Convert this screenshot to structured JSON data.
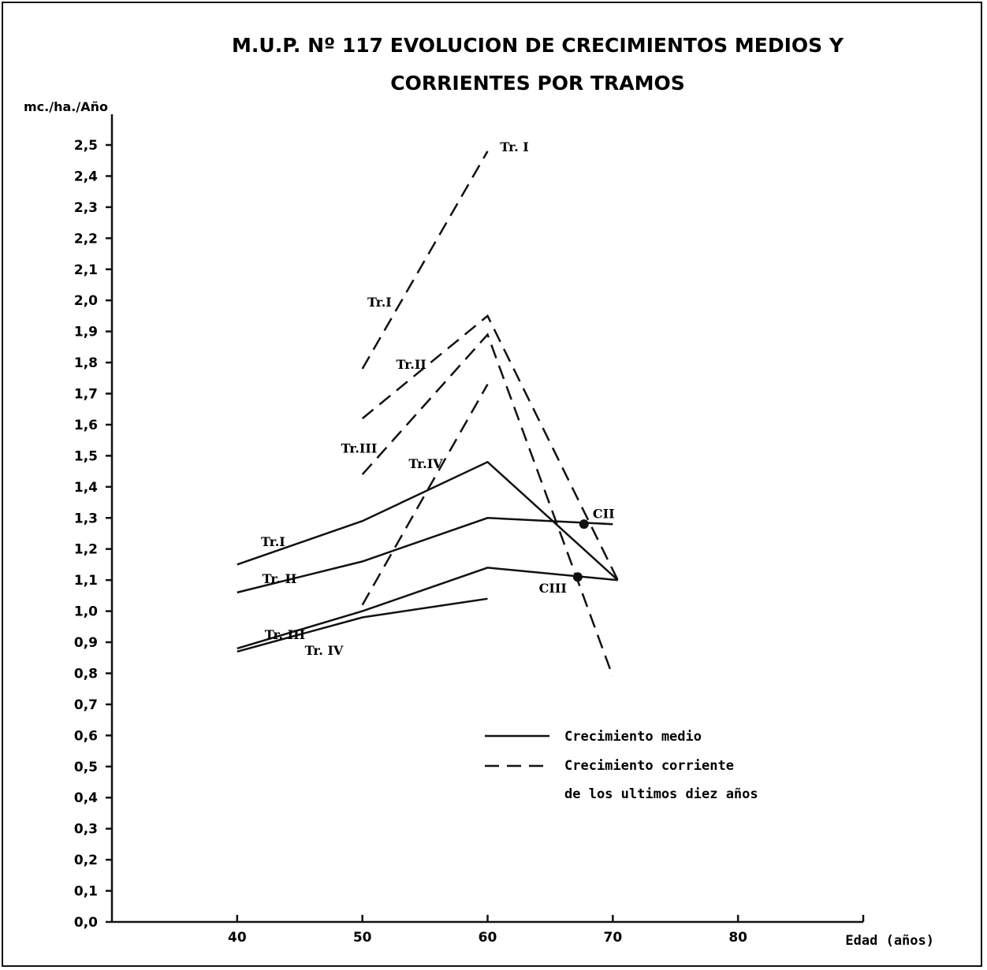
{
  "chart_data": {
    "type": "line",
    "title_line1": "M.U.P. Nº 117 EVOLUCION DE CRECIMIENTOS MEDIOS Y",
    "title_line2": "CORRIENTES POR TRAMOS",
    "ylabel": "mc./ha./Año",
    "xlabel": "Edad (años)",
    "xlim": [
      30,
      90
    ],
    "ylim": [
      0,
      2.5
    ],
    "x_ticks": [
      40,
      50,
      60,
      70,
      80,
      90
    ],
    "x_tick_labels": [
      "40",
      "50",
      "60",
      "70",
      "80",
      ""
    ],
    "y_ticks": [
      0,
      0.1,
      0.2,
      0.3,
      0.4,
      0.5,
      0.6,
      0.7,
      0.8,
      0.9,
      1.0,
      1.1,
      1.2,
      1.3,
      1.4,
      1.5,
      1.6,
      1.7,
      1.8,
      1.9,
      2.0,
      2.1,
      2.2,
      2.3,
      2.4,
      2.5
    ],
    "y_tick_labels": [
      "0,0",
      "0,1",
      "0,2",
      "0,3",
      "0,4",
      "0,5",
      "0,6",
      "0,7",
      "0,8",
      "0,9",
      "1,0",
      "1,1",
      "1,2",
      "1,3",
      "1,4",
      "1,5",
      "1,6",
      "1,7",
      "1,8",
      "1,9",
      "2,0",
      "2,1",
      "2,2",
      "2,3",
      "2,4",
      "2,5"
    ],
    "grid": false,
    "legend_position": "bottom-right",
    "legend": [
      {
        "style": "solid",
        "label": "Crecimiento medio"
      },
      {
        "style": "dashed",
        "label": "Crecimiento corriente",
        "label2": "de los ultimos diez años"
      }
    ],
    "series": [
      {
        "name": "Tr.I",
        "style": "solid",
        "points": [
          [
            40,
            1.15
          ],
          [
            50,
            1.29
          ],
          [
            60,
            1.48
          ],
          [
            70.4,
            1.1
          ]
        ],
        "label_at": [
          41.9,
          1.21
        ]
      },
      {
        "name": "Tr. II",
        "style": "solid",
        "points": [
          [
            40,
            1.06
          ],
          [
            50,
            1.16
          ],
          [
            60,
            1.3
          ],
          [
            70,
            1.28
          ]
        ],
        "label_at": [
          42.0,
          1.09
        ]
      },
      {
        "name": "Tr. III",
        "style": "solid",
        "points": [
          [
            40,
            0.88
          ],
          [
            50,
            1.0
          ],
          [
            60,
            1.14
          ],
          [
            70.4,
            1.1
          ]
        ],
        "label_at": [
          42.2,
          0.91
        ]
      },
      {
        "name": "Tr. IV",
        "style": "solid",
        "points": [
          [
            40,
            0.87
          ],
          [
            50,
            0.98
          ],
          [
            60,
            1.04
          ]
        ],
        "label_at": [
          45.4,
          0.86
        ]
      },
      {
        "name": "Tr. I",
        "style": "dashed",
        "points": [
          [
            50,
            1.78
          ],
          [
            60,
            2.48
          ]
        ],
        "label_at": [
          61.0,
          2.48
        ]
      },
      {
        "name": "Tr.I",
        "style": "dashed",
        "points": [],
        "label_at": [
          50.4,
          1.98
        ]
      },
      {
        "name": "Tr.II",
        "style": "dashed",
        "points": [
          [
            50,
            1.62
          ],
          [
            60,
            1.95
          ],
          [
            70.4,
            1.1
          ]
        ],
        "label_at": [
          52.7,
          1.78
        ]
      },
      {
        "name": "Tr.III",
        "style": "dashed",
        "points": [
          [
            50,
            1.44
          ],
          [
            60,
            1.89
          ],
          [
            70,
            0.79
          ]
        ],
        "label_at": [
          48.3,
          1.51
        ]
      },
      {
        "name": "Tr.IV",
        "style": "dashed",
        "points": [
          [
            50,
            1.02
          ],
          [
            60,
            1.73
          ]
        ],
        "label_at": [
          53.7,
          1.46
        ]
      }
    ],
    "annotations": [
      {
        "label": "CII",
        "x": 67.7,
        "y": 1.28,
        "label_at": [
          68.4,
          1.3
        ]
      },
      {
        "label": "CIII",
        "x": 67.2,
        "y": 1.11,
        "label_at": [
          64.1,
          1.06
        ]
      }
    ]
  }
}
